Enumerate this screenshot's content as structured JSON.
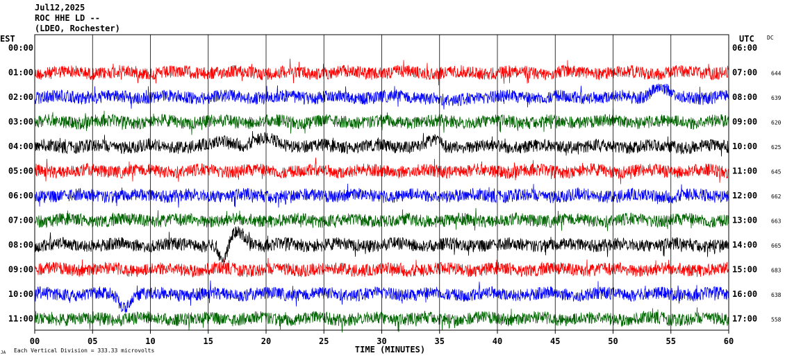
{
  "header": {
    "date": "Jul12,2025",
    "station": "ROC HHE LD --",
    "network": "(LDEO, Rochester)"
  },
  "left_axis_title": "EST",
  "right_axis_title": "UTC",
  "dc_title": "DC",
  "footer": {
    "logo_mark": "JA",
    "scale_note": "Each Vertical Division =  333.33 microvolts",
    "x_axis_label": "TIME (MINUTES)"
  },
  "colors": {
    "red": "#ff0000",
    "blue": "#0000ff",
    "green": "#006400",
    "black": "#000000",
    "grid": "#000000"
  },
  "chart_data": {
    "type": "line",
    "title": "ROC HHE LD --",
    "xlabel": "TIME (MINUTES)",
    "ylabel": "",
    "xlim": [
      0,
      60
    ],
    "x_ticks": [
      "00",
      "05",
      "10",
      "15",
      "20",
      "25",
      "30",
      "35",
      "40",
      "45",
      "50",
      "55",
      "60"
    ],
    "x_tick_values": [
      0,
      5,
      10,
      15,
      20,
      25,
      30,
      35,
      40,
      45,
      50,
      55,
      60
    ],
    "grid": true,
    "rows": [
      {
        "est": "00:00",
        "utc": "06:00",
        "dc": "",
        "color": "none"
      },
      {
        "est": "01:00",
        "utc": "07:00",
        "dc": "644",
        "color": "red"
      },
      {
        "est": "02:00",
        "utc": "08:00",
        "dc": "639",
        "color": "blue"
      },
      {
        "est": "03:00",
        "utc": "09:00",
        "dc": "620",
        "color": "green"
      },
      {
        "est": "04:00",
        "utc": "10:00",
        "dc": "625",
        "color": "black"
      },
      {
        "est": "05:00",
        "utc": "11:00",
        "dc": "645",
        "color": "red"
      },
      {
        "est": "06:00",
        "utc": "12:00",
        "dc": "662",
        "color": "blue"
      },
      {
        "est": "07:00",
        "utc": "13:00",
        "dc": "663",
        "color": "green"
      },
      {
        "est": "08:00",
        "utc": "14:00",
        "dc": "665",
        "color": "black"
      },
      {
        "est": "09:00",
        "utc": "15:00",
        "dc": "683",
        "color": "red"
      },
      {
        "est": "10:00",
        "utc": "16:00",
        "dc": "638",
        "color": "blue"
      },
      {
        "est": "11:00",
        "utc": "17:00",
        "dc": "558",
        "color": "green"
      }
    ],
    "events": [
      {
        "row": 2,
        "minute": 54,
        "amplitude": 0.7,
        "width": 1.0
      },
      {
        "row": 2,
        "minute": 36,
        "amplitude": -0.35,
        "width": 1.2
      },
      {
        "row": 4,
        "minute": 16.5,
        "amplitude": 0.4,
        "width": 1.2
      },
      {
        "row": 4,
        "minute": 20,
        "amplitude": 0.5,
        "width": 1.5
      },
      {
        "row": 4,
        "minute": 34.5,
        "amplitude": 0.35,
        "width": 0.8
      },
      {
        "row": 8,
        "minute": 16.3,
        "amplitude": -1.3,
        "width": 0.5
      },
      {
        "row": 8,
        "minute": 17.6,
        "amplitude": 0.9,
        "width": 0.9
      },
      {
        "row": 10,
        "minute": 7.7,
        "amplitude": -0.9,
        "width": 0.6
      }
    ]
  }
}
